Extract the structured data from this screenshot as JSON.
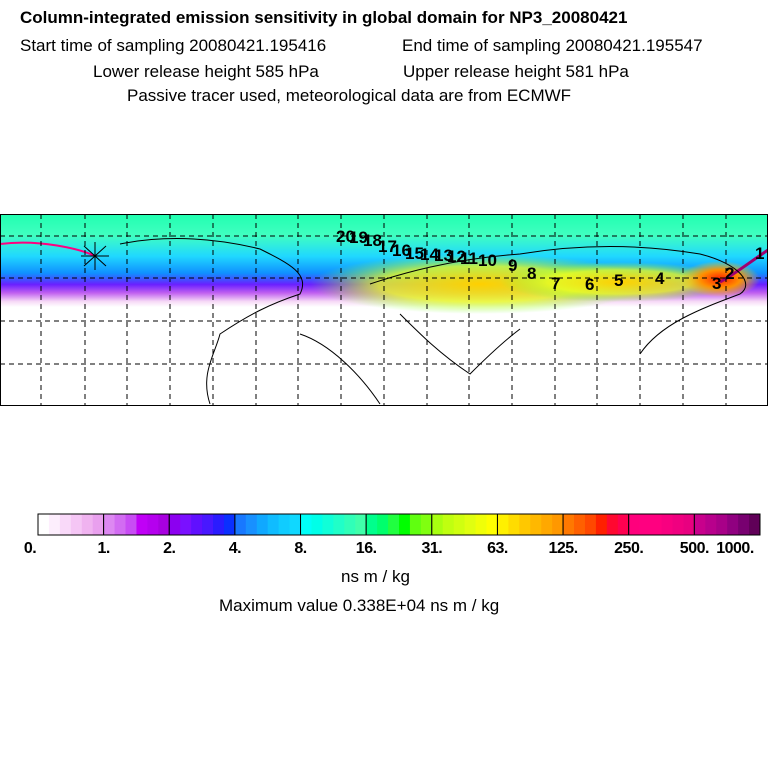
{
  "header": {
    "title": "Column-integrated emission sensitivity in global domain for NP3_20080421",
    "start_time": "Start time of sampling 20080421.195416",
    "end_time": "End time of sampling 20080421.195547",
    "lower_release": "Lower release height  585 hPa",
    "upper_release": "Upper release height  581 hPa",
    "tracer_info": "Passive tracer used, meteorological data are from ECMWF"
  },
  "chart_data": {
    "type": "heatmap",
    "title": "Column-integrated emission sensitivity in global domain for NP3_20080421",
    "colorbar": {
      "tick_labels": [
        "0.",
        "1.",
        "2.",
        "4.",
        "8.",
        "16.",
        "31.",
        "63.",
        "125.",
        "250.",
        "500.",
        "1000."
      ],
      "values": [
        0,
        1,
        2,
        4,
        8,
        16,
        31,
        63,
        125,
        250,
        500,
        1000
      ],
      "unit": "ns m / kg",
      "segment_colors": [
        [
          "#ffffff",
          "#fdeefd",
          "#f9d9f9",
          "#f5c6f5",
          "#f0b3f0",
          "#e9a0ee"
        ],
        [
          "#dd88f2",
          "#d26cf2",
          "#c84cf4",
          "#c000f6",
          "#b500ee",
          "#a800e0"
        ],
        [
          "#8c00f0",
          "#7a10ff",
          "#6010ff",
          "#4818ff",
          "#2a1cff",
          "#0a30ff"
        ],
        [
          "#1878ff",
          "#1890ff",
          "#10a8ff",
          "#10bcff",
          "#10ccff",
          "#10d8ff"
        ],
        [
          "#00fff8",
          "#00ffe8",
          "#10ffd8",
          "#20ffc8",
          "#30ffb8",
          "#40ffaa"
        ],
        [
          "#00ff8c",
          "#00ff6c",
          "#20ff40",
          "#00ff00",
          "#60ff10",
          "#80ff10"
        ],
        [
          "#a8ff10",
          "#c0ff10",
          "#d0ff10",
          "#e0ff10",
          "#f0ff08",
          "#ffff00"
        ],
        [
          "#fff000",
          "#ffdc00",
          "#ffc800",
          "#ffb800",
          "#ffa800",
          "#ff9800"
        ],
        [
          "#ff7800",
          "#ff6000",
          "#ff4800",
          "#ff2000",
          "#ff0830",
          "#ff0050"
        ],
        [
          "#ff007c",
          "#ff0080",
          "#ff0080",
          "#f80080",
          "#f00080",
          "#e80080"
        ],
        [
          "#c8008c",
          "#b8008c",
          "#a80088",
          "#900080",
          "#780070",
          "#600058"
        ]
      ]
    },
    "trajectory_labels": [
      "20",
      "19",
      "18",
      "17",
      "16",
      "15",
      "14",
      "13",
      "12",
      "11",
      "10",
      "9",
      "8",
      "7",
      "6",
      "5",
      "4",
      "3",
      "2",
      "1"
    ],
    "maximum_value": "Maximum value  0.338E+04 ns m / kg"
  }
}
